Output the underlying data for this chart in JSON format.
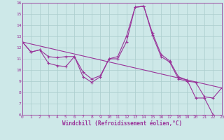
{
  "xlabel": "Windchill (Refroidissement éolien,°C)",
  "xlim": [
    0,
    23
  ],
  "ylim": [
    6,
    16
  ],
  "xticks": [
    0,
    1,
    2,
    3,
    4,
    5,
    6,
    7,
    8,
    9,
    10,
    11,
    12,
    13,
    14,
    15,
    16,
    17,
    18,
    19,
    20,
    21,
    22,
    23
  ],
  "yticks": [
    6,
    7,
    8,
    9,
    10,
    11,
    12,
    13,
    14,
    15,
    16
  ],
  "bg_color": "#cde8e8",
  "line_color": "#993399",
  "grid_color": "#aacccc",
  "line1_x": [
    0,
    1,
    2,
    3,
    4,
    5,
    6,
    7,
    8,
    9,
    10,
    11,
    12,
    13,
    14,
    15,
    16,
    17,
    18,
    19,
    20,
    21,
    22,
    23
  ],
  "line1_y": [
    12.5,
    11.6,
    11.8,
    10.6,
    10.4,
    10.3,
    11.2,
    9.4,
    8.9,
    9.4,
    11.0,
    11.2,
    13.0,
    15.6,
    15.7,
    13.3,
    11.4,
    10.8,
    9.4,
    9.1,
    7.5,
    7.5,
    6.0,
    5.8
  ],
  "line2_x": [
    0,
    1,
    2,
    3,
    4,
    5,
    6,
    7,
    8,
    9,
    10,
    11,
    12,
    13,
    14,
    15,
    16,
    17,
    18,
    19,
    20,
    21,
    22,
    23
  ],
  "line2_y": [
    12.5,
    11.6,
    11.8,
    11.2,
    11.1,
    11.2,
    11.2,
    9.8,
    9.2,
    9.5,
    11.0,
    11.0,
    12.5,
    15.6,
    15.7,
    13.1,
    11.2,
    10.7,
    9.2,
    9.0,
    8.9,
    7.6,
    7.5,
    8.4
  ],
  "line3_x": [
    0,
    23
  ],
  "line3_y": [
    12.5,
    8.4
  ],
  "marker": "+"
}
